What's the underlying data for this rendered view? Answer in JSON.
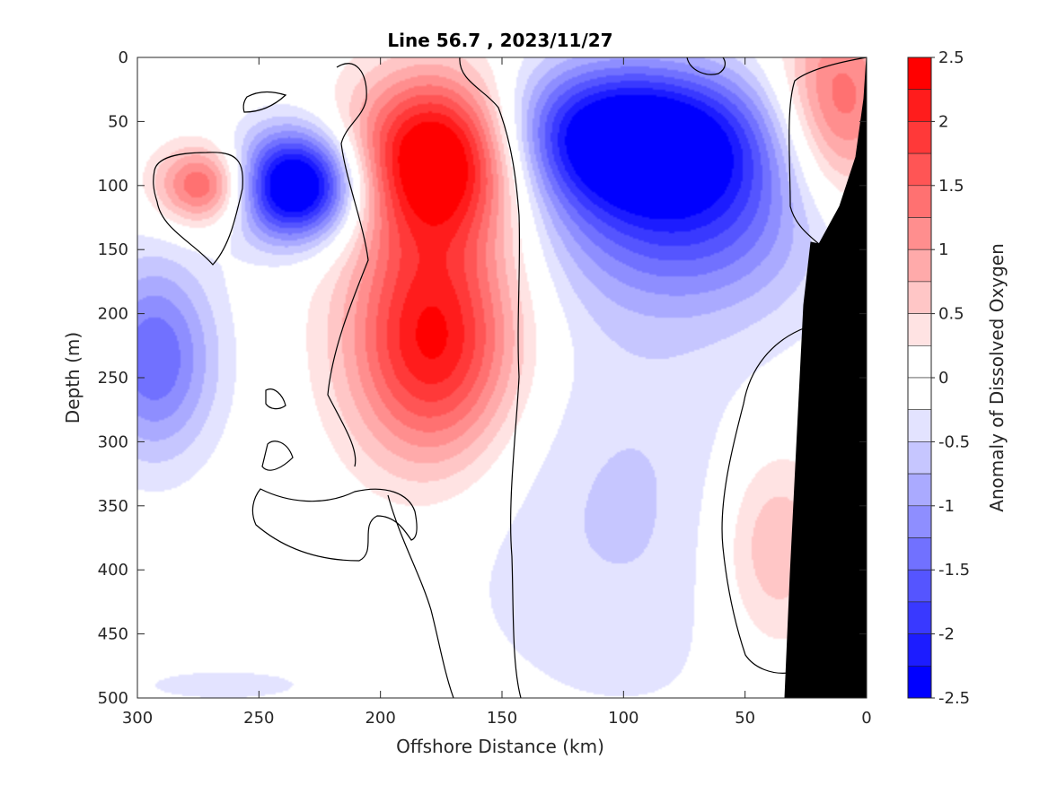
{
  "chart_data": {
    "type": "heatmap",
    "title": "Line 56.7 , 2023/11/27",
    "xlabel": "Offshore Distance (km)",
    "ylabel": "Depth (m)",
    "xlim": [
      300,
      0
    ],
    "ylim": [
      0,
      500
    ],
    "x_reversed": true,
    "y_reversed": true,
    "xticks": [
      300,
      250,
      200,
      150,
      100,
      50,
      0
    ],
    "xtick_labels": [
      "300",
      "250",
      "200",
      "150",
      "100",
      "50",
      "0"
    ],
    "yticks": [
      0,
      50,
      100,
      150,
      200,
      250,
      300,
      350,
      400,
      450,
      500
    ],
    "ytick_labels": [
      "0",
      "50",
      "100",
      "150",
      "200",
      "250",
      "300",
      "350",
      "400",
      "450",
      "500"
    ],
    "colorbar": {
      "label": "Anomaly of Dissolved Oxygen",
      "range": [
        -2.5,
        2.5
      ],
      "ticks": [
        2.5,
        2,
        1.5,
        1,
        0.5,
        0,
        -0.5,
        -1,
        -1.5,
        -2,
        -2.5
      ],
      "tick_labels": [
        "2.5",
        "2",
        "1.5",
        "1",
        "0.5",
        "0",
        "-0.5",
        "-1",
        "-1.5",
        "-2",
        "-2.5"
      ],
      "levels": [
        -2.5,
        -2.25,
        -2,
        -1.75,
        -1.5,
        -1.25,
        -1,
        -0.75,
        -0.5,
        -0.25,
        0.25,
        0.5,
        0.75,
        1,
        1.25,
        1.5,
        1.75,
        2,
        2.25,
        2.5
      ],
      "colormap": "blue-white-red",
      "low_color": "#0000ff",
      "high_color": "#ff0000"
    },
    "features": [
      {
        "sign": "positive",
        "x": 272,
        "y": 100,
        "peak": 1.3
      },
      {
        "sign": "negative",
        "x": 235,
        "y": 100,
        "peak": -2.3
      },
      {
        "sign": "negative",
        "x": 293,
        "y": 235,
        "peak": -1.1
      },
      {
        "sign": "positive",
        "x": 175,
        "y": 75,
        "peak": 2.2
      },
      {
        "sign": "positive",
        "x": 178,
        "y": 220,
        "peak": 1.8
      },
      {
        "sign": "negative",
        "x": 100,
        "y": 60,
        "peak": -1.9
      },
      {
        "sign": "negative",
        "x": 75,
        "y": 120,
        "peak": -1.2
      },
      {
        "sign": "positive",
        "x": 12,
        "y": 40,
        "peak": 1.2
      },
      {
        "sign": "positive",
        "x": 38,
        "y": 380,
        "peak": 0.7
      },
      {
        "sign": "negative",
        "x": 100,
        "y": 350,
        "peak": -0.4
      },
      {
        "sign": "negative",
        "x": 265,
        "y": 490,
        "peak": -0.3
      }
    ],
    "land_mask": "black bathymetry from ~33 km at 500 m rising to 0 km at ~35 m",
    "colors": {
      "land": "#000000",
      "contour": "#000000",
      "axis": "#262626"
    }
  }
}
